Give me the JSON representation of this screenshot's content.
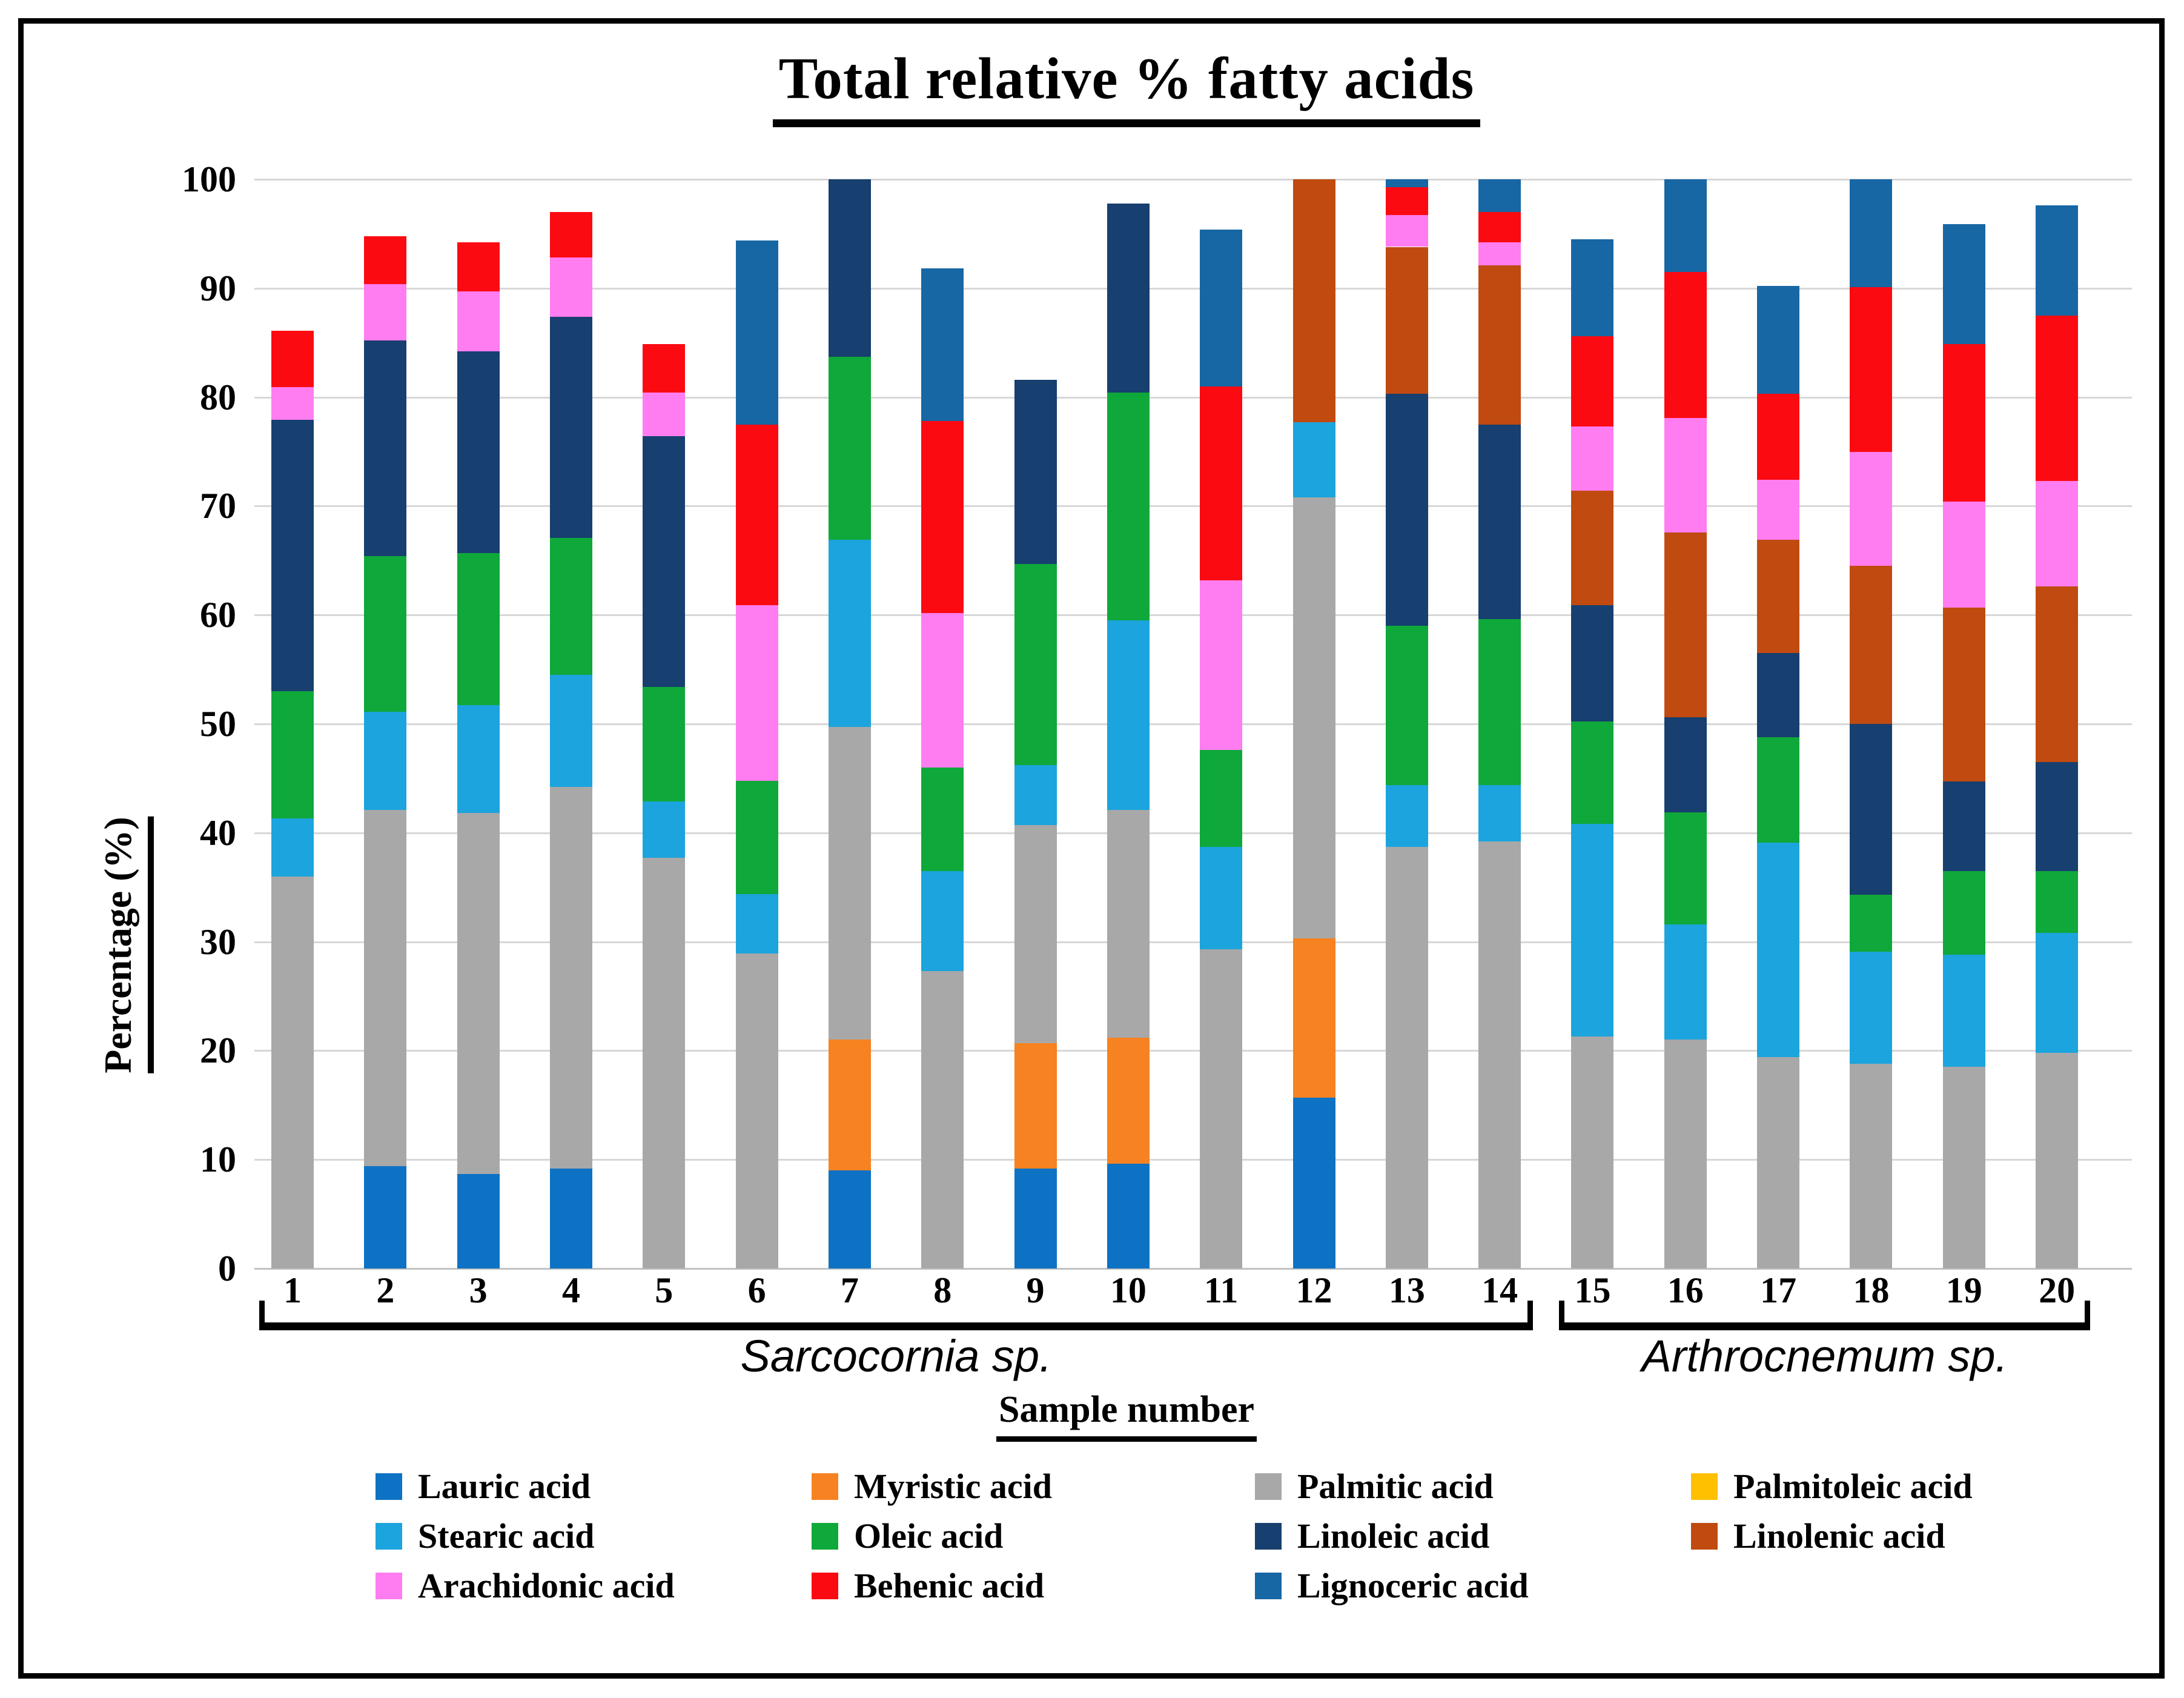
{
  "title": "Total relative % fatty acids",
  "y_axis": {
    "label": "Percentage (%)",
    "ticks": [
      0,
      10,
      20,
      30,
      40,
      50,
      60,
      70,
      80,
      90,
      100
    ]
  },
  "x_axis": {
    "label": "Sample number",
    "groups": [
      {
        "label": "Sarcocornia sp.",
        "from": 1,
        "to": 14
      },
      {
        "label": "Arthrocnemum sp.",
        "from": 15,
        "to": 20
      }
    ]
  },
  "colors": {
    "grid": "#d7d7d7",
    "frame": "#000000",
    "background": "#ffffff"
  },
  "chart_data": {
    "type": "bar",
    "stacked": true,
    "title": "Total relative % fatty acids",
    "xlabel": "Sample number",
    "ylabel": "Percentage (%)",
    "ylim": [
      0,
      100
    ],
    "grid": true,
    "legend_position": "bottom",
    "categories": [
      "1",
      "2",
      "3",
      "4",
      "5",
      "6",
      "7",
      "8",
      "9",
      "10",
      "11",
      "12",
      "13",
      "14",
      "15",
      "16",
      "17",
      "18",
      "19",
      "20"
    ],
    "series": [
      {
        "name": "Lauric acid",
        "color": "#0d72c4",
        "values": [
          0,
          9.4,
          8.7,
          9.2,
          0,
          0,
          9.0,
          0,
          9.2,
          9.6,
          0,
          15.7,
          0,
          0,
          0,
          0,
          0,
          0,
          0,
          0
        ]
      },
      {
        "name": "Myristic acid",
        "color": "#f68221",
        "values": [
          0,
          0,
          0,
          0,
          0,
          0,
          12.0,
          0,
          11.5,
          11.6,
          0,
          14.6,
          0,
          0,
          0,
          0,
          0,
          0,
          0,
          0
        ]
      },
      {
        "name": "Palmitic acid",
        "color": "#a8a8a8",
        "values": [
          36.0,
          32.7,
          33.1,
          35.0,
          37.7,
          28.9,
          28.7,
          27.3,
          20.0,
          20.9,
          29.3,
          40.5,
          38.7,
          39.2,
          21.3,
          21.0,
          19.4,
          18.8,
          18.5,
          19.8
        ]
      },
      {
        "name": "Palmitoleic acid",
        "color": "#ffc000",
        "values": [
          0,
          0,
          0,
          0,
          0,
          0,
          0,
          0,
          0,
          0,
          0,
          0,
          0,
          0,
          0,
          0,
          0,
          0,
          0,
          0
        ]
      },
      {
        "name": "Stearic acid",
        "color": "#1ba4dd",
        "values": [
          5.3,
          9.0,
          9.9,
          10.3,
          5.2,
          5.5,
          17.2,
          9.2,
          5.5,
          17.4,
          9.4,
          6.9,
          5.7,
          5.2,
          19.5,
          10.6,
          19.7,
          10.3,
          10.3,
          11.0
        ]
      },
      {
        "name": "Oleic acid",
        "color": "#0fa83a",
        "values": [
          11.7,
          14.3,
          14.0,
          12.6,
          10.5,
          10.4,
          16.8,
          9.5,
          18.5,
          20.9,
          8.9,
          0,
          14.6,
          15.2,
          9.4,
          10.3,
          9.7,
          5.2,
          7.7,
          5.7
        ]
      },
      {
        "name": "Linoleic acid",
        "color": "#173f6f",
        "values": [
          24.9,
          19.8,
          18.5,
          20.3,
          23.0,
          0,
          16.3,
          0,
          16.9,
          17.4,
          0,
          0,
          21.3,
          17.9,
          10.7,
          8.7,
          7.7,
          15.7,
          8.2,
          10.0
        ]
      },
      {
        "name": "Linolenic acid",
        "color": "#c04a10",
        "values": [
          0,
          0,
          0,
          0,
          0,
          0,
          0,
          0,
          0,
          0,
          0,
          22.3,
          13.5,
          14.6,
          10.5,
          17.0,
          10.4,
          14.5,
          16.0,
          16.1
        ]
      },
      {
        "name": "Arachidonic acid",
        "color": "#ff7df0",
        "values": [
          3.0,
          5.2,
          5.5,
          5.4,
          4.0,
          16.1,
          0,
          14.2,
          0,
          0,
          15.6,
          0,
          2.9,
          2.1,
          5.9,
          10.5,
          5.5,
          10.5,
          9.7,
          9.7
        ]
      },
      {
        "name": "Behenic acid",
        "color": "#fb0a12",
        "values": [
          5.2,
          4.4,
          4.5,
          4.2,
          4.5,
          16.6,
          0,
          17.6,
          0,
          0,
          17.8,
          0,
          2.6,
          2.8,
          8.3,
          13.4,
          7.9,
          15.1,
          14.5,
          15.2
        ]
      },
      {
        "name": "Lignoceric acid",
        "color": "#1767a4",
        "values": [
          0,
          0,
          0,
          0,
          0,
          16.9,
          0,
          14.0,
          0,
          0,
          14.4,
          0,
          0.7,
          3.0,
          8.9,
          8.5,
          9.9,
          9.9,
          11.0,
          10.1
        ]
      }
    ]
  }
}
